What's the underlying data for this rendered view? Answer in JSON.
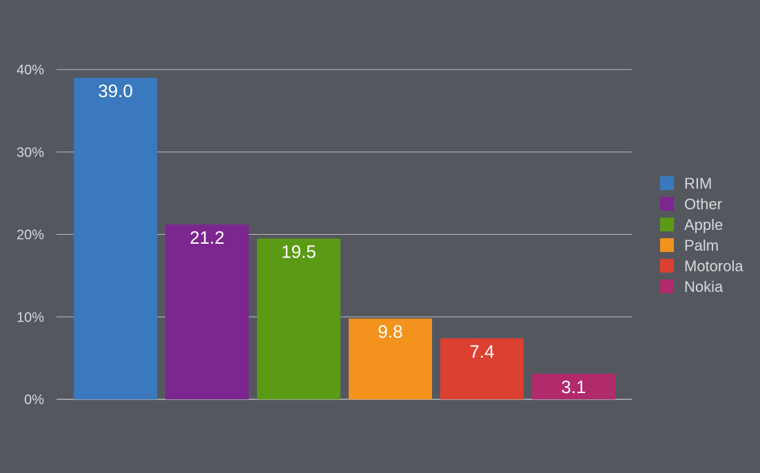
{
  "chart_data": {
    "type": "bar",
    "categories": [
      "RIM",
      "Other",
      "Apple",
      "Palm",
      "Motorola",
      "Nokia"
    ],
    "values": [
      39.0,
      21.2,
      19.5,
      9.8,
      7.4,
      3.1
    ],
    "value_labels": [
      "39.0",
      "21.2",
      "19.5",
      "9.8",
      "7.4",
      "3.1"
    ],
    "colors": [
      "#3a79bd",
      "#7c268f",
      "#5a9a14",
      "#f3921d",
      "#dc4030",
      "#b02a6c"
    ],
    "y_ticks": [
      0,
      10,
      20,
      30,
      40
    ],
    "y_tick_labels": [
      "0%",
      "10%",
      "20%",
      "30%",
      "40%"
    ],
    "ylim": [
      0,
      40
    ],
    "grid": true,
    "legend": "right",
    "title": "",
    "xlabel": "",
    "ylabel": ""
  },
  "colors": {
    "background": "#54585e",
    "text": "#d6d8dc",
    "grid": "#b9bcc1"
  }
}
